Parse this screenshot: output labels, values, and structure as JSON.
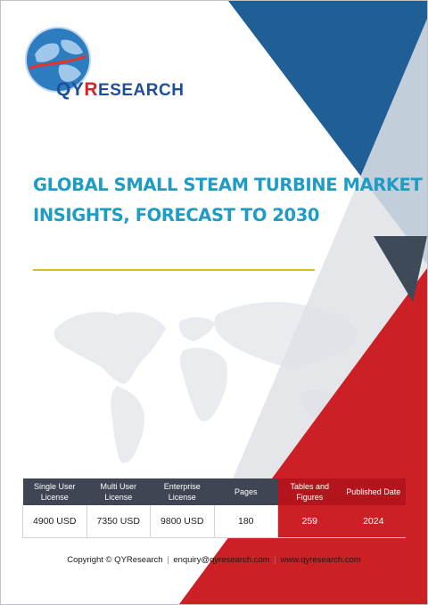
{
  "brand": {
    "logo_qy": "QY",
    "logo_r": "R",
    "logo_rest": "ESEARCH",
    "colors": {
      "blue": "#1f4e9c",
      "red": "#d9232a",
      "title": "#1f9cc4",
      "gold": "#e2b92b"
    }
  },
  "report": {
    "title_line1": "GLOBAL SMALL STEAM TURBINE MARKET",
    "title_line2": "INSIGHTS, FORECAST TO 2030"
  },
  "table": {
    "headers": [
      "Single User License",
      "Multi User License",
      "Enterprise License",
      "Pages",
      "Tables and Figures",
      "Published Date"
    ],
    "values": [
      "4900 USD",
      "7350 USD",
      "9800 USD",
      "180",
      "259",
      "2024"
    ]
  },
  "footer": {
    "copyright": "Copyright © QYResearch",
    "email": "enquiry@qyresearch.com",
    "website": "www.qyresearch.com",
    "separator": "|"
  }
}
